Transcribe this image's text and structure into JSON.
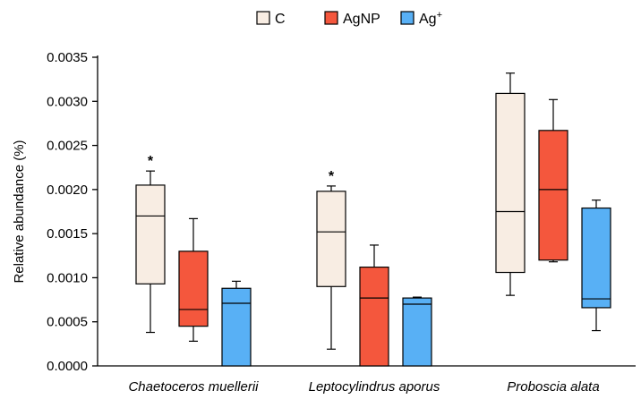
{
  "chart_data": {
    "type": "box",
    "title": "",
    "xlabel": "",
    "ylabel": "Relative abundance (%)",
    "ylim": [
      0,
      0.0035
    ],
    "yticks": [
      "0.0000",
      "0.0005",
      "0.0010",
      "0.0015",
      "0.0020",
      "0.0025",
      "0.0030",
      "0.0035"
    ],
    "categories": [
      "Chaetoceros muellerii",
      "Leptocylindrus aporus",
      "Proboscia alata"
    ],
    "legend": {
      "position": "top-center"
    },
    "grid": false,
    "series": [
      {
        "name": "C",
        "color": "#f8ede3",
        "boxes": [
          {
            "min": 0.00038,
            "q1": 0.00093,
            "median": 0.0017,
            "q3": 0.00205,
            "max": 0.00221
          },
          {
            "min": 0.00019,
            "q1": 0.0009,
            "median": 0.00152,
            "q3": 0.00198,
            "max": 0.00204
          },
          {
            "min": 0.0008,
            "q1": 0.00106,
            "median": 0.00175,
            "q3": 0.00309,
            "max": 0.00332
          }
        ]
      },
      {
        "name": "AgNP",
        "color": "#f4573d",
        "boxes": [
          {
            "min": 0.00028,
            "q1": 0.00045,
            "median": 0.00064,
            "q3": 0.0013,
            "max": 0.00167
          },
          {
            "min": 0.0,
            "q1": 0.0,
            "median": 0.00077,
            "q3": 0.00112,
            "max": 0.00137
          },
          {
            "min": 0.00118,
            "q1": 0.0012,
            "median": 0.002,
            "q3": 0.00267,
            "max": 0.00302
          }
        ]
      },
      {
        "name": "Ag",
        "superscript": "+",
        "color": "#58b0f5",
        "boxes": [
          {
            "min": 0.0,
            "q1": 0.0,
            "median": 0.00071,
            "q3": 0.00088,
            "max": 0.00096
          },
          {
            "min": 0.0,
            "q1": 0.0,
            "median": 0.0007,
            "q3": 0.00077,
            "max": 0.00078
          },
          {
            "min": 0.0004,
            "q1": 0.00066,
            "median": 0.00076,
            "q3": 0.00179,
            "max": 0.00188
          }
        ]
      }
    ],
    "annotations": [
      {
        "text": "*",
        "category_index": 0,
        "series_index": 0
      },
      {
        "text": "*",
        "category_index": 1,
        "series_index": 0
      }
    ]
  }
}
